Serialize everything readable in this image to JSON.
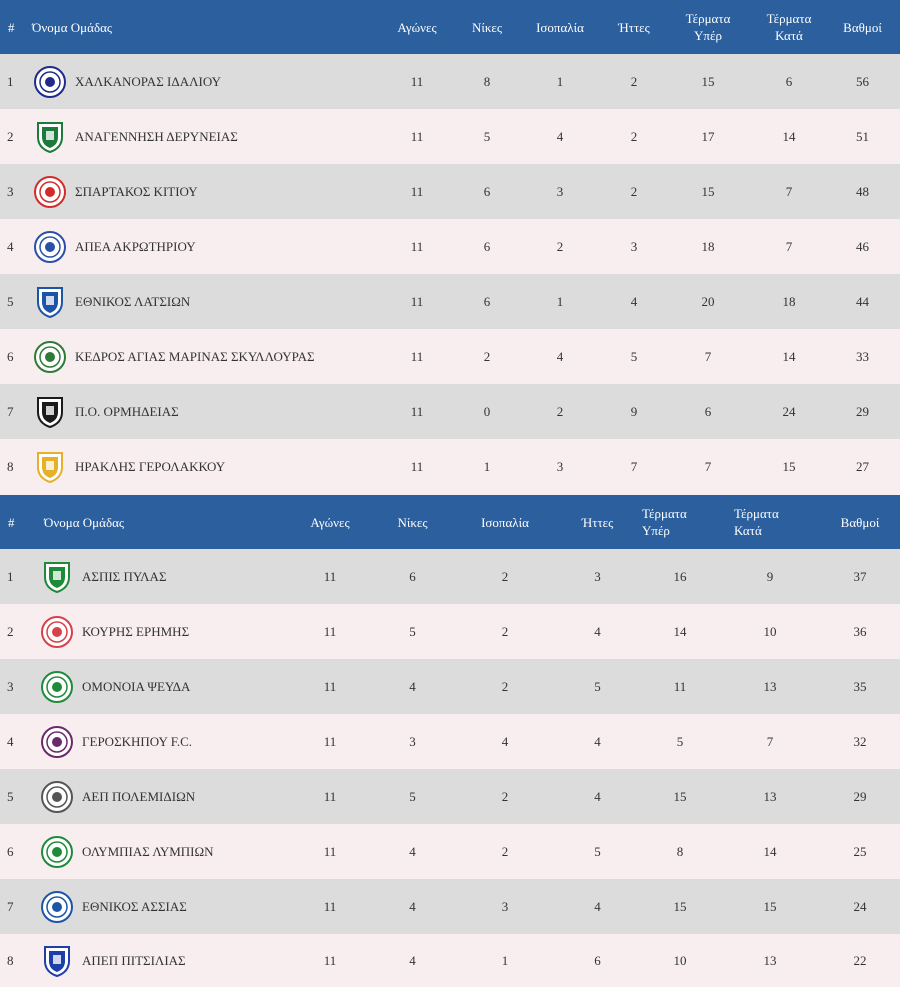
{
  "header": {
    "num": "#",
    "team": "Όνομα Ομάδας",
    "played": "Αγώνες",
    "wins": "Νίκες",
    "draws": "Ισοπαλία",
    "losses": "Ήττες",
    "gf_1": "Τέρματα",
    "gf_2": "Υπέρ",
    "ga_1": "Τέρματα",
    "ga_2": "Κατά",
    "points": "Βαθμοί"
  },
  "group1": [
    {
      "pos": "1",
      "team": "ΧΑΛΚΑΝΟΡΑΣ ΙΔΑΛΙΟΥ",
      "played": "11",
      "wins": "8",
      "draws": "1",
      "losses": "2",
      "gf": "15",
      "ga": "6",
      "points": "56",
      "logo": "chalkanoras-crest",
      "color": "#1f2a8a"
    },
    {
      "pos": "2",
      "team": "ΑΝΑΓΕΝΝΗΣΗ ΔΕΡΥΝΕΙΑΣ",
      "played": "11",
      "wins": "5",
      "draws": "4",
      "losses": "2",
      "gf": "17",
      "ga": "14",
      "points": "51",
      "logo": "anagennisi-shield",
      "color": "#1e7a3a"
    },
    {
      "pos": "3",
      "team": "ΣΠΑΡΤΑΚΟΣ ΚΙΤΙΟΥ",
      "played": "11",
      "wins": "6",
      "draws": "3",
      "losses": "2",
      "gf": "15",
      "ga": "7",
      "points": "48",
      "logo": "spartakos-crest",
      "color": "#d22b2b"
    },
    {
      "pos": "4",
      "team": "ΑΠΕΑ ΑΚΡΩΤΗΡΙΟΥ",
      "played": "11",
      "wins": "6",
      "draws": "2",
      "losses": "3",
      "gf": "18",
      "ga": "7",
      "points": "46",
      "logo": "apea-flamingo-crest",
      "color": "#2a4fa8"
    },
    {
      "pos": "5",
      "team": "ΕΘΝΙΚΟΣ ΛΑΤΣΙΩΝ",
      "played": "11",
      "wins": "6",
      "draws": "1",
      "losses": "4",
      "gf": "20",
      "ga": "18",
      "points": "44",
      "logo": "ethnikos-latsion-shield",
      "color": "#1c55a8"
    },
    {
      "pos": "6",
      "team": "ΚΕΔΡΟΣ ΑΓΙΑΣ ΜΑΡΙΝΑΣ ΣΚΥΛΛΟΥΡΑΣ",
      "played": "11",
      "wins": "2",
      "draws": "4",
      "losses": "5",
      "gf": "7",
      "ga": "14",
      "points": "33",
      "logo": "kedros-cedar-crest",
      "color": "#2f7a36"
    },
    {
      "pos": "7",
      "team": "Π.Ο. ΟΡΜΗΔΕΙΑΣ",
      "played": "11",
      "wins": "0",
      "draws": "2",
      "losses": "9",
      "gf": "6",
      "ga": "24",
      "points": "29",
      "logo": "ormideia-shield",
      "color": "#1b1b1b"
    },
    {
      "pos": "8",
      "team": "ΗΡΑΚΛΗΣ ΓΕΡΟΛΑΚΚΟΥ",
      "played": "11",
      "wins": "1",
      "draws": "3",
      "losses": "7",
      "gf": "7",
      "ga": "15",
      "points": "27",
      "logo": "iraklis-shield",
      "color": "#e5b12a"
    }
  ],
  "group2": [
    {
      "pos": "1",
      "team": "ΑΣΠΙΣ ΠΥΛΑΣ",
      "played": "11",
      "wins": "6",
      "draws": "2",
      "losses": "3",
      "gf": "16",
      "ga": "9",
      "points": "37",
      "logo": "aspis-shield",
      "color": "#1f8a3a"
    },
    {
      "pos": "2",
      "team": "ΚΟΥΡΗΣ ΕΡΗΜΗΣ",
      "played": "11",
      "wins": "5",
      "draws": "2",
      "losses": "4",
      "gf": "14",
      "ga": "10",
      "points": "36",
      "logo": "kouris-crest",
      "color": "#d8404a"
    },
    {
      "pos": "3",
      "team": "ΟΜΟΝΟΙΑ ΨΕΥΔΑ",
      "played": "11",
      "wins": "4",
      "draws": "2",
      "losses": "5",
      "gf": "11",
      "ga": "13",
      "points": "35",
      "logo": "omonoia-clover-crest",
      "color": "#1f8a3a"
    },
    {
      "pos": "4",
      "team": "ΓΕΡΟΣΚΗΠΟΥ F.C.",
      "played": "11",
      "wins": "3",
      "draws": "4",
      "losses": "4",
      "gf": "5",
      "ga": "7",
      "points": "32",
      "logo": "geroskipou-crest",
      "color": "#6a2a6a"
    },
    {
      "pos": "5",
      "team": "ΑΕΠ ΠΟΛΕΜΙΔΙΩΝ",
      "played": "11",
      "wins": "5",
      "draws": "2",
      "losses": "4",
      "gf": "15",
      "ga": "13",
      "points": "29",
      "logo": "aep-crest",
      "color": "#555555"
    },
    {
      "pos": "6",
      "team": "ΟΛΥΜΠΙΑΣ ΛΥΜΠΙΩΝ",
      "played": "11",
      "wins": "4",
      "draws": "2",
      "losses": "5",
      "gf": "8",
      "ga": "14",
      "points": "25",
      "logo": "olympias-crest",
      "color": "#1f8a3a"
    },
    {
      "pos": "7",
      "team": "ΕΘΝΙΚΟΣ ΑΣΣΙΑΣ",
      "played": "11",
      "wins": "4",
      "draws": "3",
      "losses": "4",
      "gf": "15",
      "ga": "15",
      "points": "24",
      "logo": "ethnikos-assias-crest",
      "color": "#1c55a8"
    },
    {
      "pos": "8",
      "team": "ΑΠΕΠ ΠΙΤΣΙΛΙΑΣ",
      "played": "11",
      "wins": "4",
      "draws": "1",
      "losses": "6",
      "gf": "10",
      "ga": "13",
      "points": "22",
      "logo": "apep-shield",
      "color": "#1c3fa8"
    }
  ],
  "colors": {
    "header_bg": "#2c5f9e",
    "row_odd": "#dcdcdc",
    "row_even": "#f8eeef"
  }
}
